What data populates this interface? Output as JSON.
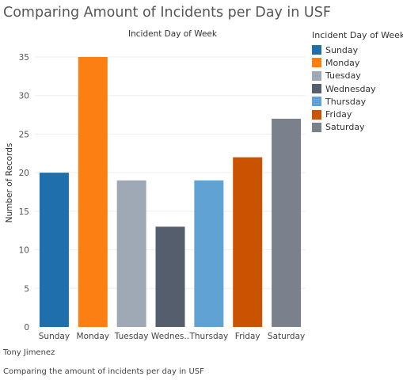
{
  "title": "Comparing Amount of Incidents per Day in USF",
  "legend": {
    "title": "Incident Day of Week",
    "items": [
      "Sunday",
      "Monday",
      "Tuesday",
      "Wednesday",
      "Thursday",
      "Friday",
      "Saturday"
    ]
  },
  "footer": {
    "author": "Tony Jimenez",
    "caption": "Comparing the amount of incidents per day in USF"
  },
  "chart_data": {
    "type": "bar",
    "title": "Incident Day of Week",
    "xlabel": "",
    "ylabel": "Number of Records",
    "categories": [
      "Sunday",
      "Monday",
      "Tuesday",
      "Wednesday",
      "Thursday",
      "Friday",
      "Saturday"
    ],
    "category_labels": [
      "Sunday",
      "Monday",
      "Tuesday",
      "Wednes..",
      "Thursday",
      "Friday",
      "Saturday"
    ],
    "values": [
      20,
      35,
      19,
      13,
      19,
      22,
      27
    ],
    "colors": [
      "#1f6fad",
      "#fb7f12",
      "#9fa9b5",
      "#545e6c",
      "#5fa2d3",
      "#ca5302",
      "#7a818d"
    ],
    "ylim": [
      0,
      35
    ],
    "yticks": [
      0,
      5,
      10,
      15,
      20,
      25,
      30,
      35
    ],
    "grid": true,
    "legend_position": "right"
  }
}
